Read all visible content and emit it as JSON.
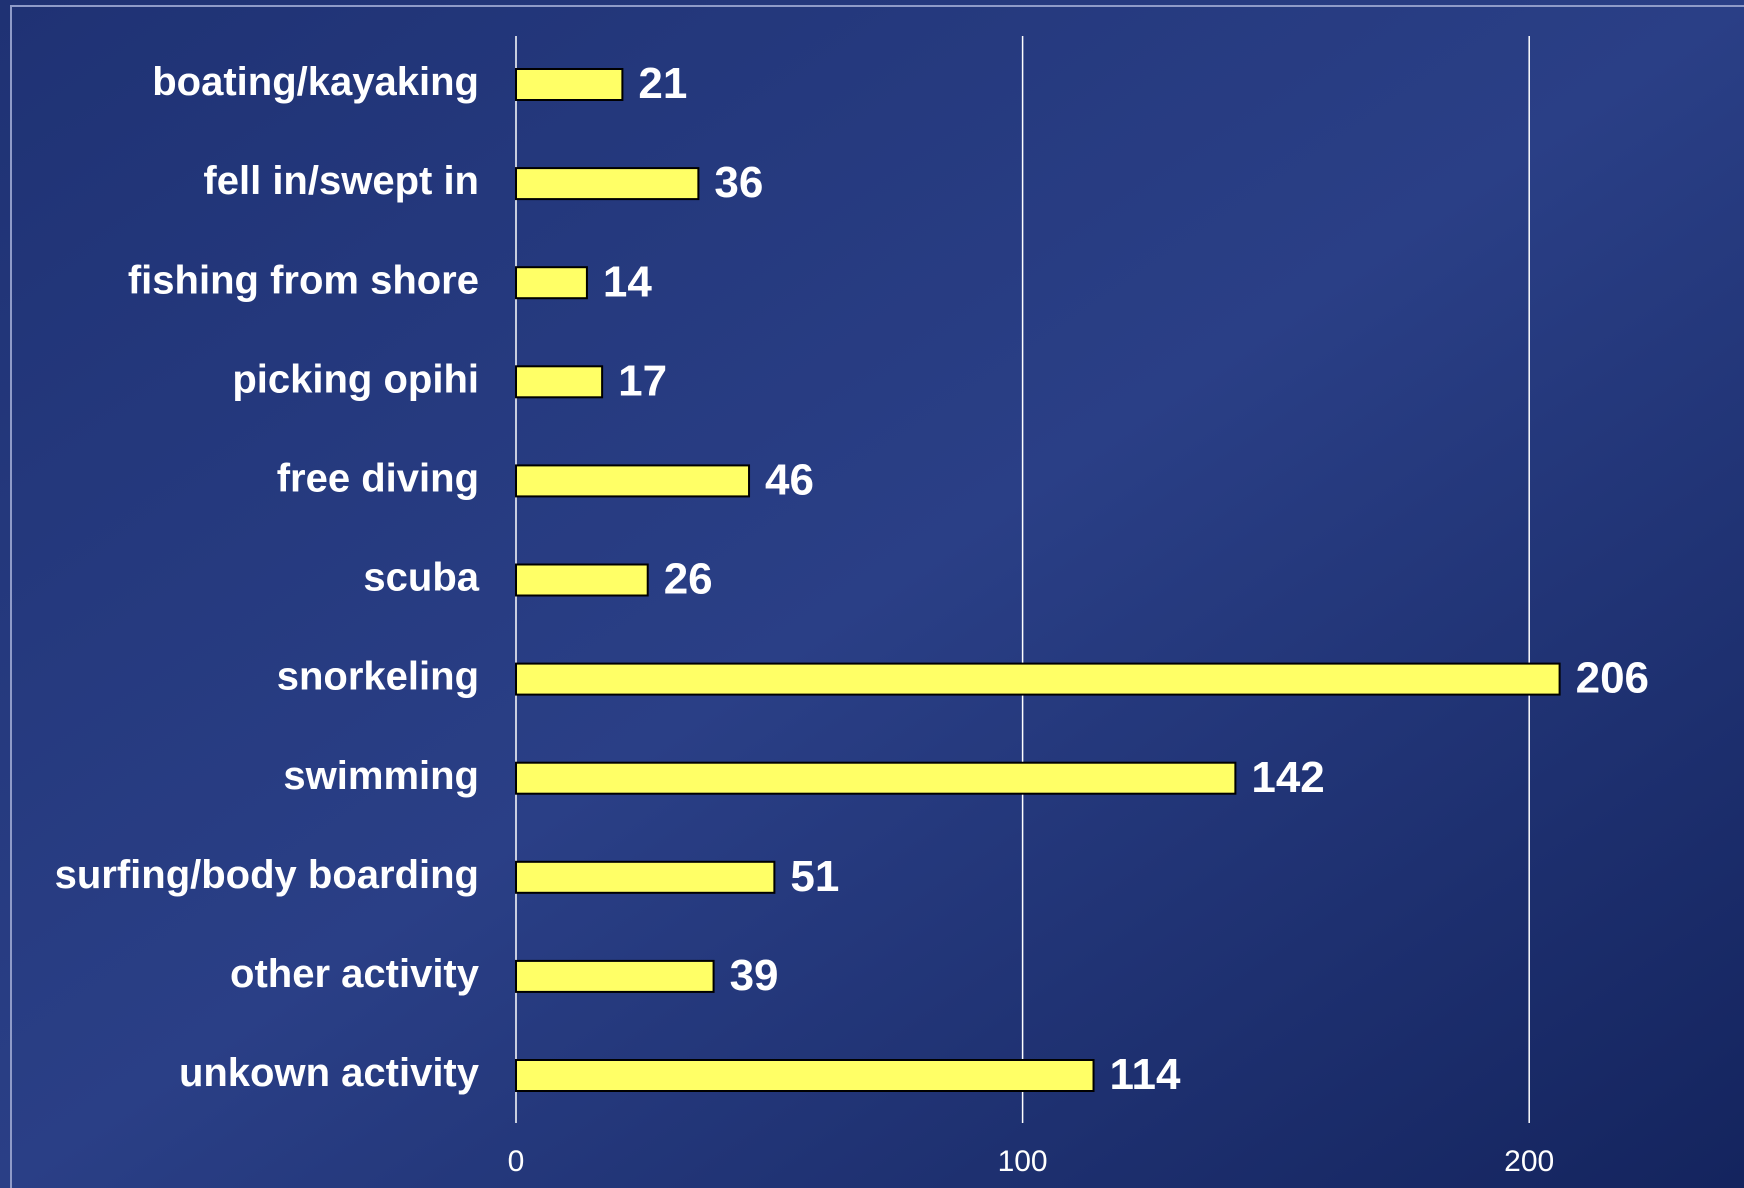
{
  "chart_data": {
    "type": "bar",
    "orientation": "horizontal",
    "categories": [
      "boating/kayaking",
      "fell in/swept in",
      "fishing from shore",
      "picking opihi",
      "free diving",
      "scuba",
      "snorkeling",
      "swimming",
      "surfing/body boarding",
      "other activity",
      "unkown activity"
    ],
    "values": [
      21,
      36,
      14,
      17,
      46,
      26,
      206,
      142,
      51,
      39,
      114
    ],
    "color": "#ffff66",
    "xlim": [
      0,
      240
    ],
    "xticks": [
      0,
      100,
      200
    ],
    "grid": true
  }
}
